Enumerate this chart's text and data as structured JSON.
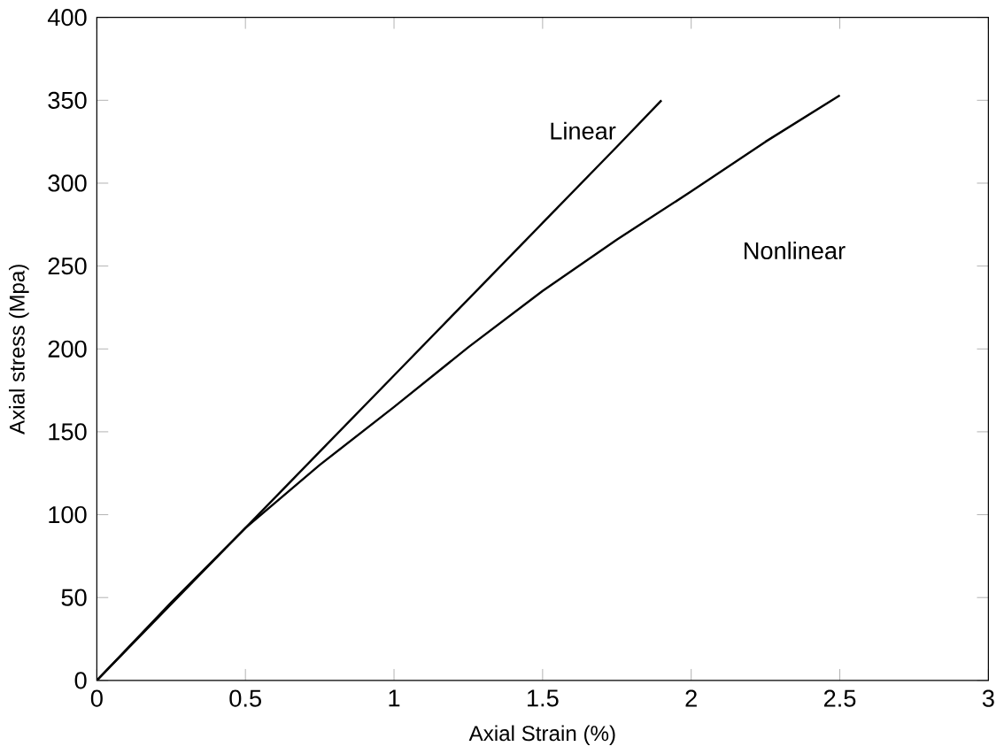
{
  "chart_data": {
    "type": "line",
    "xlabel": "Axial Strain (%)",
    "ylabel": "Axial stress (Mpa)",
    "xlim": [
      0,
      3
    ],
    "ylim": [
      0,
      400
    ],
    "xticks": [
      0,
      0.5,
      1,
      1.5,
      2,
      2.5,
      3
    ],
    "yticks": [
      0,
      50,
      100,
      150,
      200,
      250,
      300,
      350,
      400
    ],
    "grid": false,
    "marker": "none",
    "line_style": "solid",
    "series": [
      {
        "name": "Linear",
        "color": "#000000",
        "x": [
          0,
          0.25,
          0.5,
          0.75,
          1,
          1.25,
          1.5,
          1.75,
          1.9
        ],
        "values": [
          0,
          46,
          92,
          138,
          184,
          230,
          276,
          322,
          350
        ]
      },
      {
        "name": "Nonlinear",
        "color": "#000000",
        "x": [
          0,
          0.25,
          0.5,
          0.75,
          1,
          1.25,
          1.5,
          1.75,
          2,
          2.25,
          2.5
        ],
        "values": [
          0,
          47,
          92,
          130,
          165,
          201,
          235,
          266,
          295,
          325,
          353
        ]
      }
    ]
  }
}
